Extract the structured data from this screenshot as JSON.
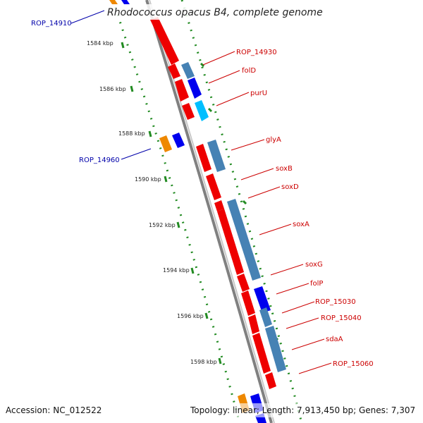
{
  "title": "Rhodococcus opacus B4, complete genome",
  "accession": "Accession: NC_012522",
  "summary": "Topology: linear; Length: 7,913,450 bp; Genes: 7,307",
  "scale_labels": [
    "1584 kbp",
    "1586 kbp",
    "1588 kbp",
    "1590 kbp",
    "1592 kbp",
    "1594 kbp",
    "1596 kbp",
    "1598 kbp"
  ],
  "gene_labels": {
    "rop14910": "ROP_14910",
    "rop14930": "ROP_14930",
    "folD": "folD",
    "purU": "purU",
    "rop14960": "ROP_14960",
    "glyA": "glyA",
    "soxB": "soxB",
    "soxD": "soxD",
    "soxA": "soxA",
    "soxG": "soxG",
    "folP": "folP",
    "rop15030": "ROP_15030",
    "rop15040": "ROP_15040",
    "sdaA": "sdaA",
    "rop15060": "ROP_15060"
  },
  "colors": {
    "backbone": "#808080",
    "cds_red": "#ee0000",
    "cds_blue": "#0000ee",
    "cds_steel": "#4682b4",
    "cds_cyan": "#00bfff",
    "cds_orange": "#ee8800",
    "scale_ticks": "#228b22",
    "label_red": "#cc0000",
    "label_blue": "#0000aa"
  }
}
